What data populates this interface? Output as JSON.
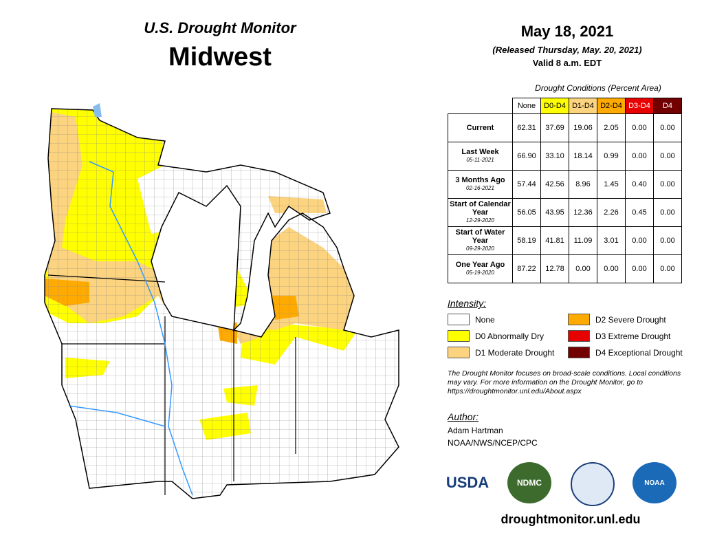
{
  "header": {
    "title": "U.S. Drought Monitor",
    "region": "Midwest"
  },
  "date": {
    "date": "May 18, 2021",
    "released": "(Released Thursday, May. 20, 2021)",
    "valid": "Valid 8 a.m. EDT"
  },
  "table": {
    "caption": "Drought Conditions (Percent Area)",
    "columns": [
      "None",
      "D0-D4",
      "D1-D4",
      "D2-D4",
      "D3-D4",
      "D4"
    ],
    "column_colors": [
      "#ffffff",
      "#ffff00",
      "#fcd37f",
      "#ffaa00",
      "#e60000",
      "#730000"
    ],
    "rows": [
      {
        "label": "Current",
        "values": [
          "62.31",
          "37.69",
          "19.06",
          "2.05",
          "0.00",
          "0.00"
        ]
      },
      {
        "label": "Last Week",
        "date": "05-11-2021",
        "values": [
          "66.90",
          "33.10",
          "18.14",
          "0.99",
          "0.00",
          "0.00"
        ]
      },
      {
        "label": "3 Months Ago",
        "date": "02-16-2021",
        "values": [
          "57.44",
          "42.56",
          "8.96",
          "1.45",
          "0.40",
          "0.00"
        ]
      },
      {
        "label": "Start of Calendar Year",
        "date": "12-29-2020",
        "values": [
          "56.05",
          "43.95",
          "12.36",
          "2.26",
          "0.45",
          "0.00"
        ]
      },
      {
        "label": "Start of Water Year",
        "date": "09-29-2020",
        "values": [
          "58.19",
          "41.81",
          "11.09",
          "3.01",
          "0.00",
          "0.00"
        ]
      },
      {
        "label": "One Year Ago",
        "date": "05-19-2020",
        "values": [
          "87.22",
          "12.78",
          "0.00",
          "0.00",
          "0.00",
          "0.00"
        ]
      }
    ]
  },
  "legend": {
    "title": "Intensity:",
    "items": [
      {
        "label": "None",
        "color": "#ffffff"
      },
      {
        "label": "D0 Abnormally Dry",
        "color": "#ffff00"
      },
      {
        "label": "D1 Moderate Drought",
        "color": "#fcd37f"
      },
      {
        "label": "D2 Severe Drought",
        "color": "#ffaa00"
      },
      {
        "label": "D3 Extreme Drought",
        "color": "#e60000"
      },
      {
        "label": "D4 Exceptional Drought",
        "color": "#730000"
      }
    ]
  },
  "note": "The Drought Monitor focuses on broad-scale conditions. Local conditions may vary. For more information on the Drought Monitor, go to https://droughtmonitor.unl.edu/About.aspx",
  "author": {
    "label": "Author:",
    "name": "Adam Hartman",
    "org": "NOAA/NWS/NCEP/CPC"
  },
  "logos": [
    "USDA",
    "NDMC",
    "NOAA"
  ],
  "url": "droughtmonitor.unl.edu"
}
